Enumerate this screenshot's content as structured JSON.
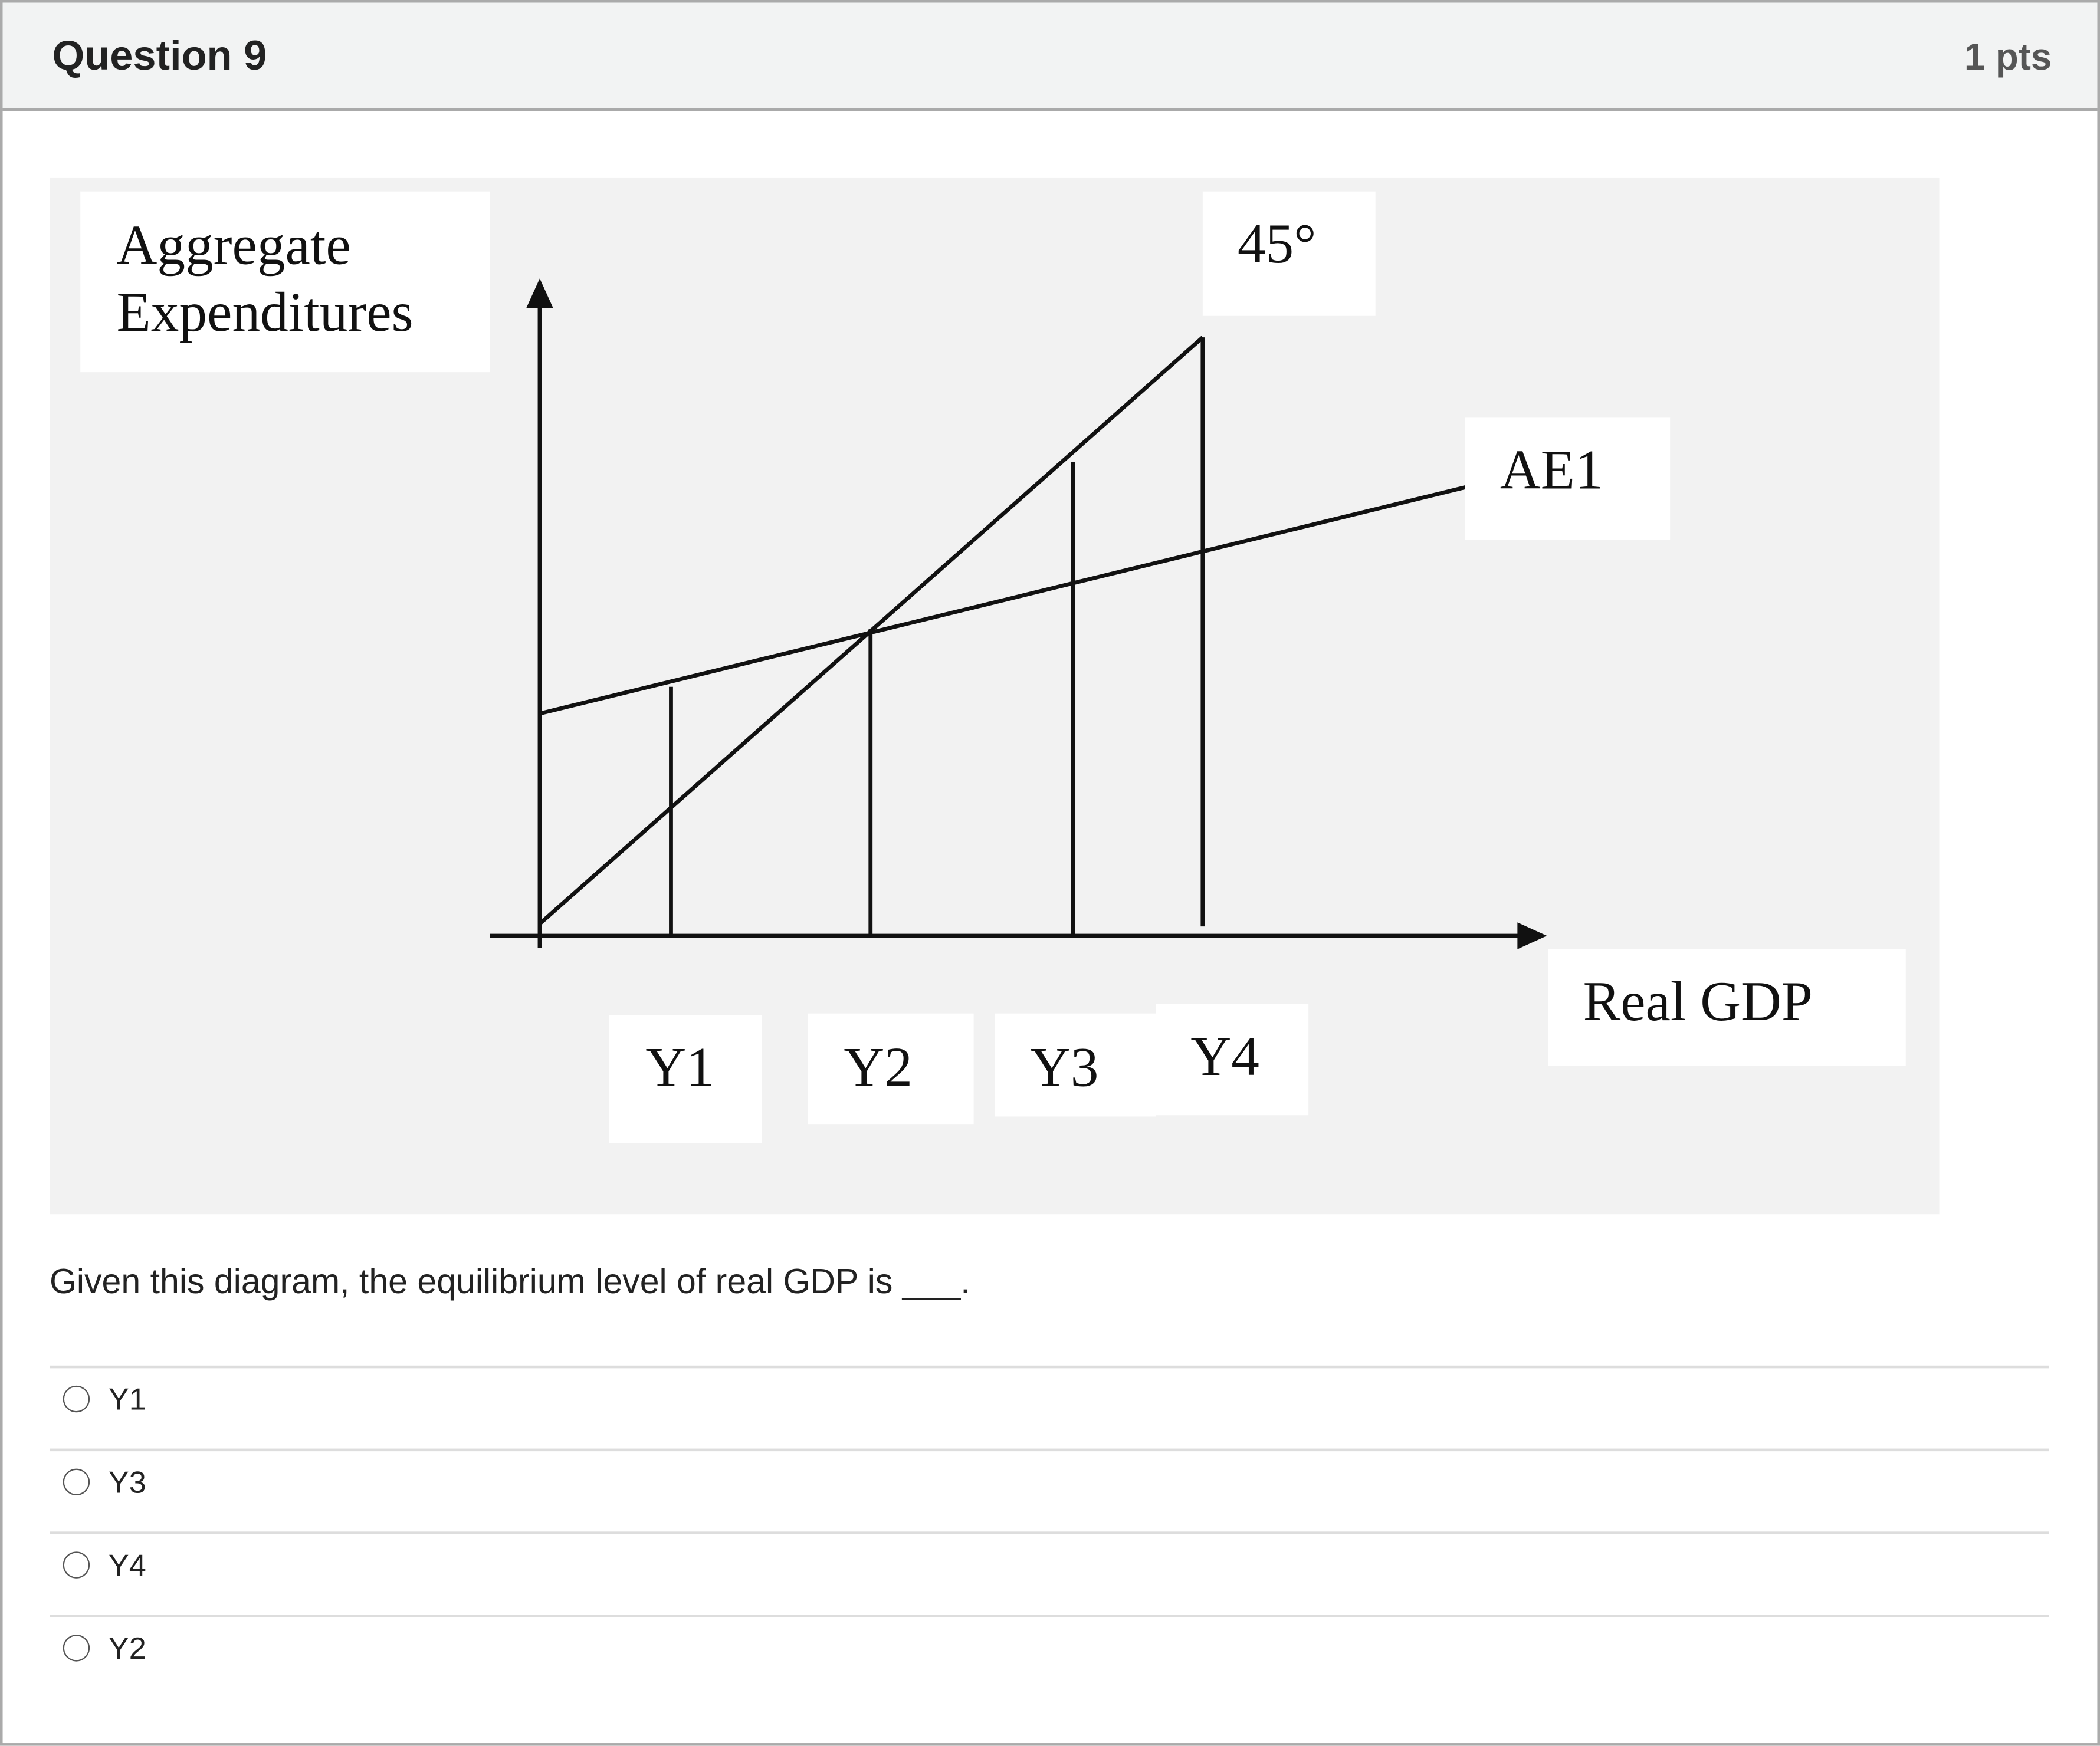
{
  "header": {
    "title": "Question 9",
    "points": "1 pts"
  },
  "diagram": {
    "y_axis_label_line1": "Aggregate",
    "y_axis_label_line2": "Expenditures",
    "line_45_label": "45°",
    "ae_label": "AE1",
    "x_axis_label": "Real GDP",
    "ticks": [
      "Y1",
      "Y2",
      "Y3",
      "Y4"
    ]
  },
  "question": {
    "text": "Given this diagram, the equilibrium level of real GDP is ___."
  },
  "options": [
    {
      "label": "Y1",
      "selected": false
    },
    {
      "label": "Y3",
      "selected": false
    },
    {
      "label": "Y4",
      "selected": false
    },
    {
      "label": "Y2",
      "selected": false
    }
  ]
}
